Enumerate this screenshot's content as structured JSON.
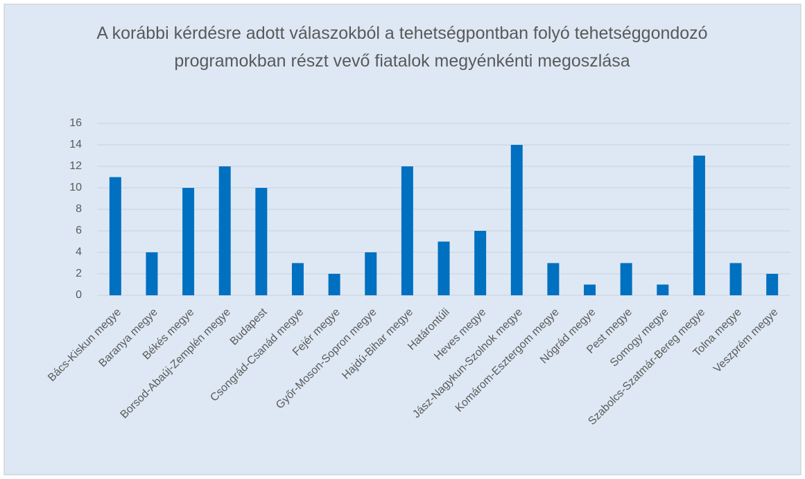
{
  "chart_data": {
    "type": "bar",
    "title": "A korábbi kérdésre adott válaszokból a tehetségpontban folyó tehetséggondozó programokban részt vevő fiatalok megyénkénti megoszlása",
    "categories": [
      "Bács-Kiskun megye",
      "Baranya megye",
      "Békés megye",
      "Borsod-Abaúj-Zemplén megye",
      "Budapest",
      "Csongrád-Csanád megye",
      "Fejér megye",
      "Győr-Moson-Sopron megye",
      "Hajdú-Bihar megye",
      "Határontúli",
      "Heves megye",
      "Jász-Nagykun-Szolnok megye",
      "Komárom-Esztergom megye",
      "Nógrád megye",
      "Pest megye",
      "Somogy megye",
      "Szabolcs-Szatmár-Bereg megye",
      "Tolna megye",
      "Veszprém megye"
    ],
    "values": [
      11,
      4,
      10,
      12,
      10,
      3,
      2,
      4,
      12,
      5,
      6,
      14,
      3,
      1,
      3,
      1,
      13,
      3,
      2
    ],
    "color": "#0070c0",
    "ylim": [
      0,
      16
    ],
    "yticks": [
      0,
      2,
      4,
      6,
      8,
      10,
      12,
      14,
      16
    ],
    "grid": true
  }
}
